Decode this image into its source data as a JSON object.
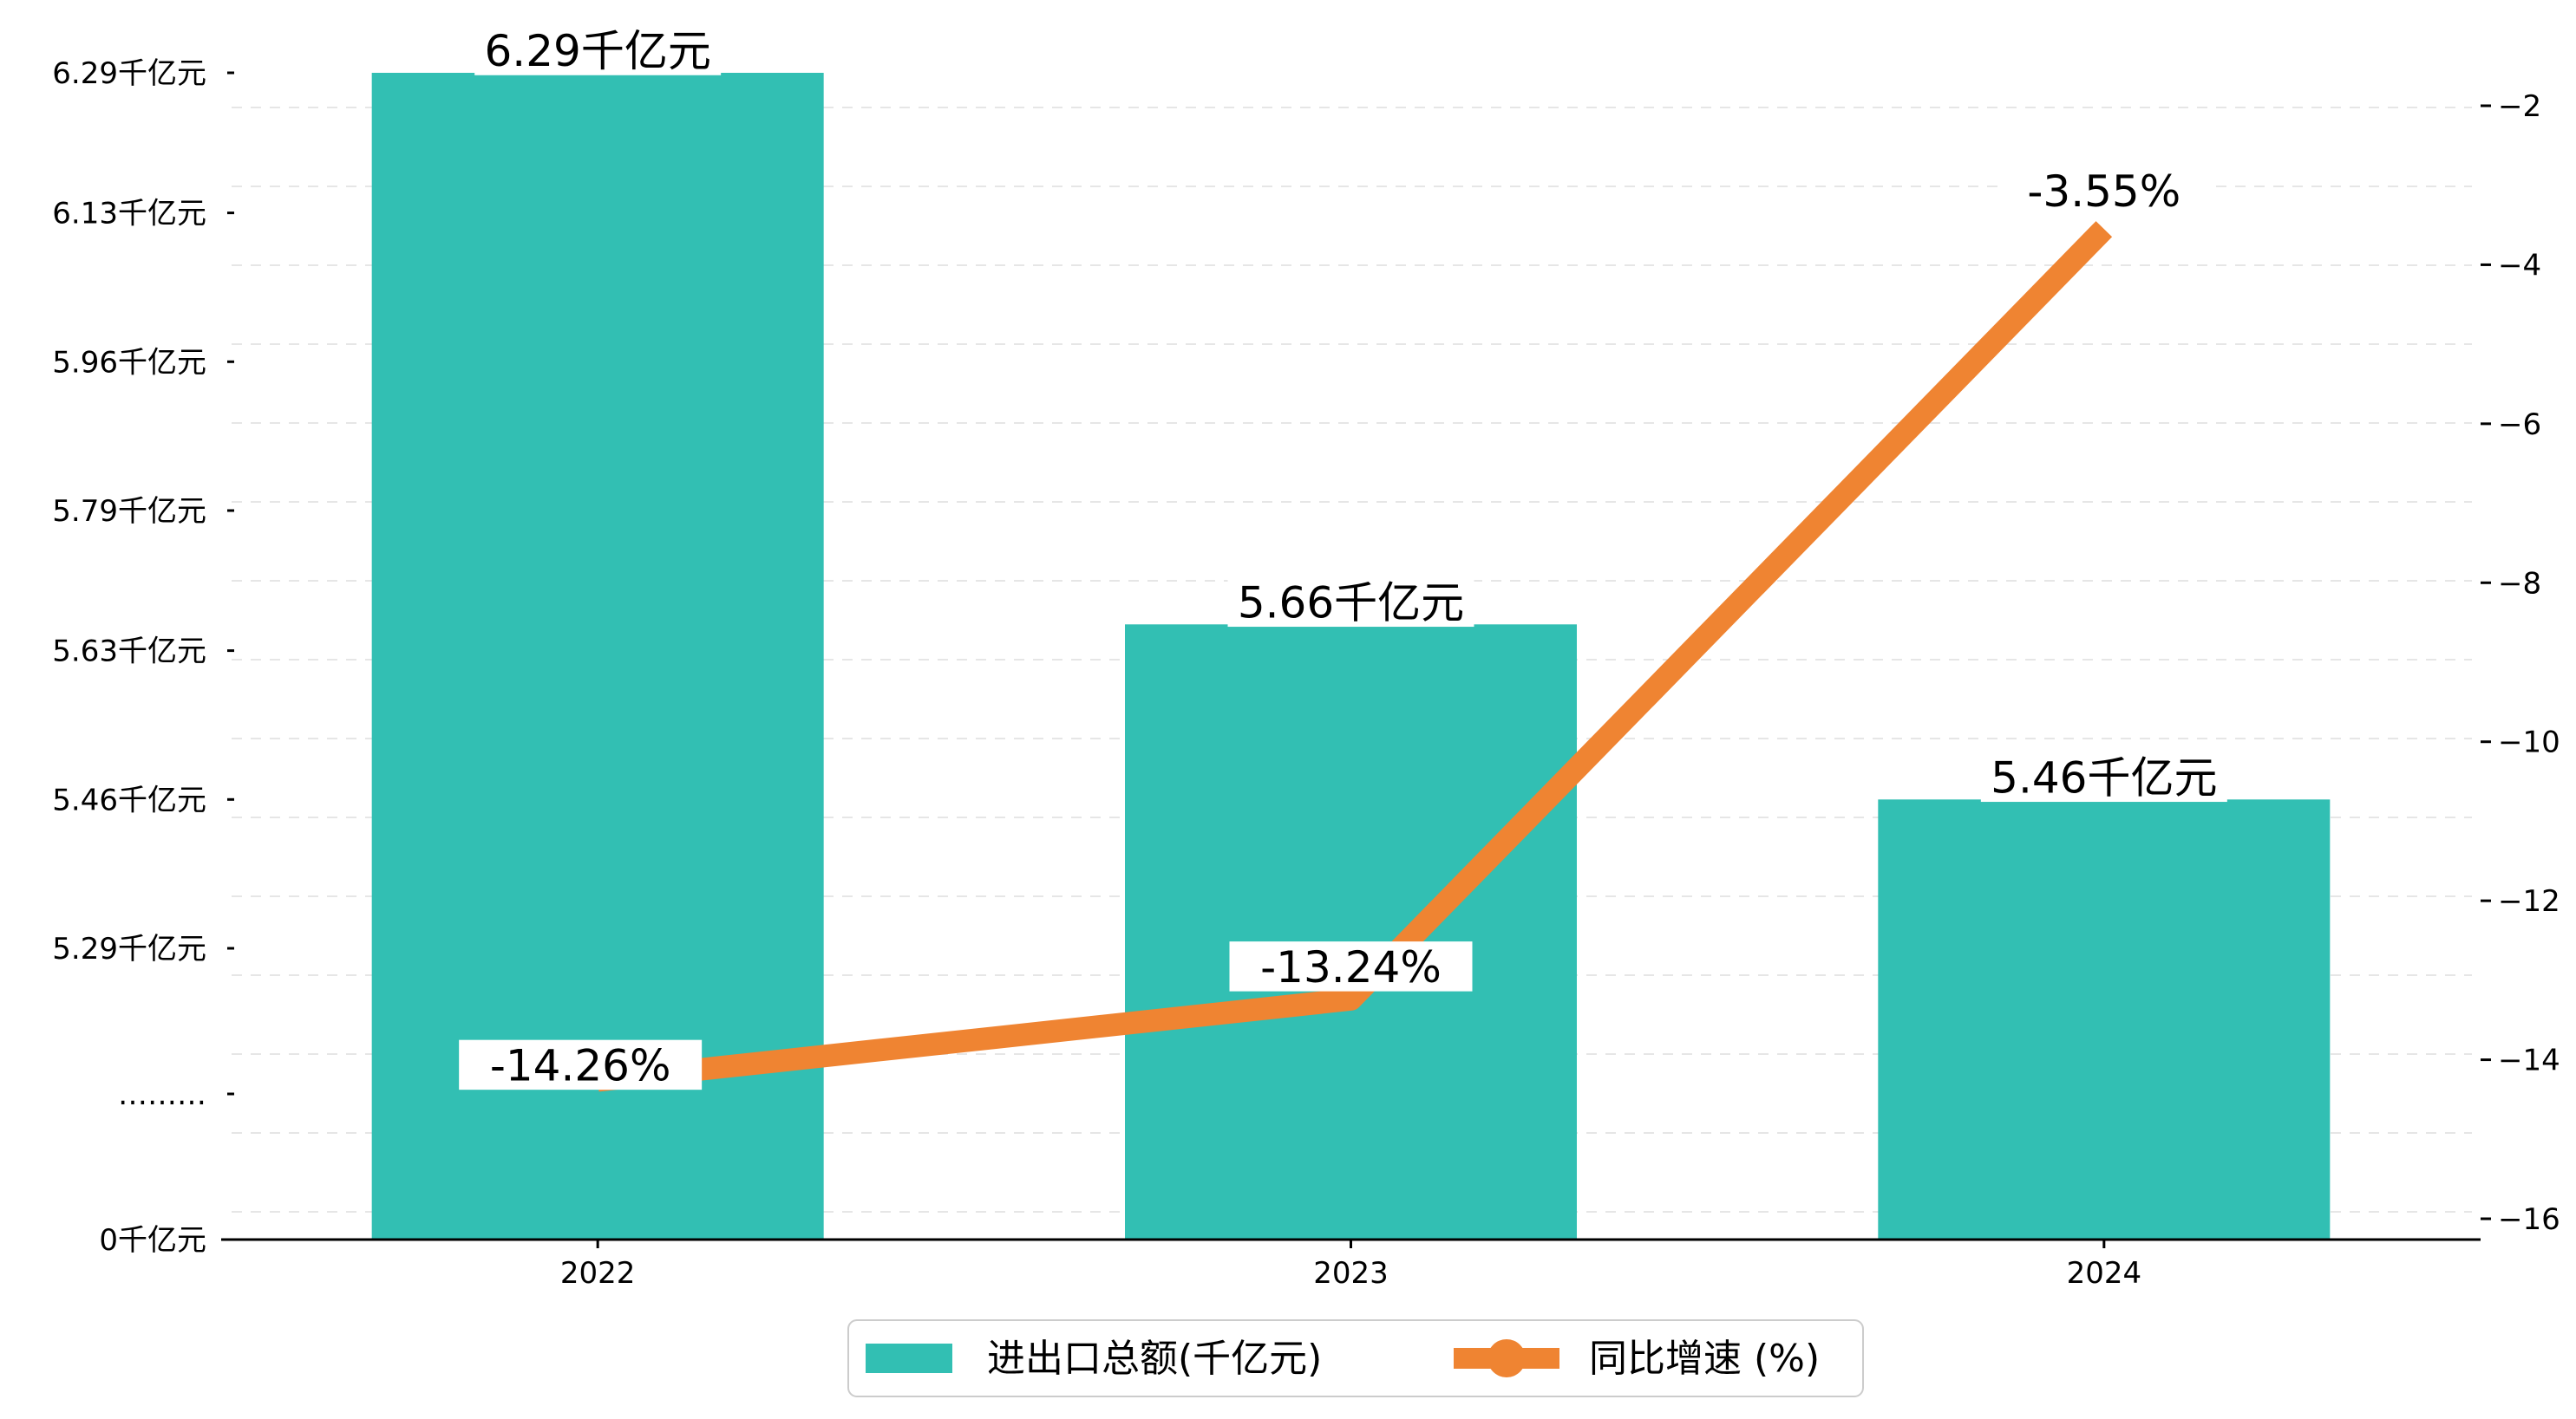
{
  "chart_data": {
    "type": "bar",
    "categories": [
      "2022",
      "2023",
      "2024"
    ],
    "series": [
      {
        "name": "进出口总额(千亿元)",
        "type": "bar",
        "axis": "left",
        "values": [
          6.29,
          5.66,
          5.46
        ],
        "labels": [
          "6.29千亿元",
          "5.66千亿元",
          "5.46千亿元"
        ],
        "color": "#32bfb3"
      },
      {
        "name": "同比增速 (%)",
        "type": "line",
        "axis": "right",
        "values": [
          -14.26,
          -13.24,
          -3.55
        ],
        "labels": [
          "-14.26%",
          "-13.24%",
          "-3.55%"
        ],
        "color": "#ef8432"
      }
    ],
    "left_axis": {
      "break": true,
      "ticks": [
        {
          "value": 0,
          "label": "0千亿元"
        },
        {
          "value": null,
          "label": "………"
        },
        {
          "value": 5.29,
          "label": "5.29千亿元"
        },
        {
          "value": 5.46,
          "label": "5.46千亿元"
        },
        {
          "value": 5.63,
          "label": "5.63千亿元"
        },
        {
          "value": 5.79,
          "label": "5.79千亿元"
        },
        {
          "value": 5.96,
          "label": "5.96千亿元"
        },
        {
          "value": 6.13,
          "label": "6.13千亿元"
        },
        {
          "value": 6.29,
          "label": "6.29千亿元"
        }
      ]
    },
    "right_axis": {
      "ylim": [
        -16.2,
        -1.5
      ],
      "ticks": [
        -16,
        -14,
        -12,
        -10,
        -8,
        -6,
        -4,
        -2
      ]
    },
    "grid": true,
    "legend_position": "bottom-center",
    "title": "",
    "xlabel": "",
    "ylabel": ""
  }
}
